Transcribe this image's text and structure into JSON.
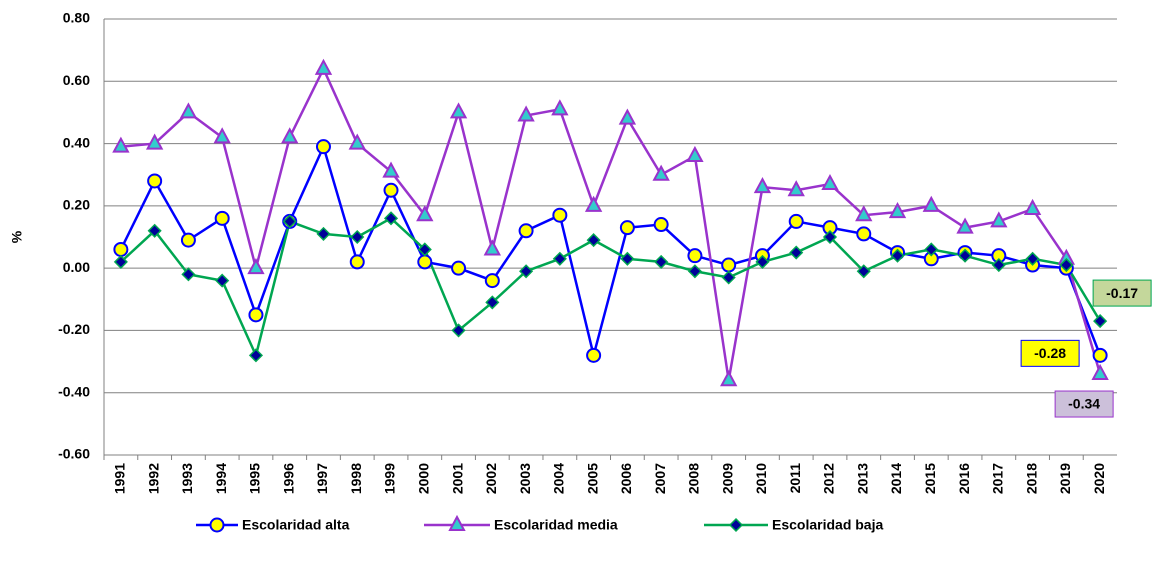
{
  "chart_data": {
    "type": "line",
    "y_label": "%",
    "categories": [
      "1991",
      "1992",
      "1993",
      "1994",
      "1995",
      "1996",
      "1997",
      "1998",
      "1999",
      "2000",
      "2001",
      "2002",
      "2003",
      "2004",
      "2005",
      "2006",
      "2007",
      "2008",
      "2009",
      "2010",
      "2011",
      "2012",
      "2013",
      "2014",
      "2015",
      "2016",
      "2017",
      "2018",
      "2019",
      "2020"
    ],
    "series": [
      {
        "name": "Escolaridad alta",
        "color": "#0000ff",
        "marker": "circle",
        "marker_fill": "#ffff00",
        "label_fill": "#ffff00",
        "values": [
          0.06,
          0.28,
          0.09,
          0.16,
          -0.15,
          0.15,
          0.39,
          0.02,
          0.25,
          0.02,
          0.0,
          -0.04,
          0.12,
          0.17,
          -0.28,
          0.13,
          0.14,
          0.04,
          0.01,
          0.04,
          0.15,
          0.13,
          0.11,
          0.05,
          0.03,
          0.05,
          0.04,
          0.01,
          0.0,
          -0.28
        ]
      },
      {
        "name": "Escolaridad media",
        "color": "#9933cc",
        "marker": "triangle",
        "marker_fill": "#33cccc",
        "label_fill": "#ccc0da",
        "values": [
          0.39,
          0.4,
          0.5,
          0.42,
          0.0,
          0.42,
          0.64,
          0.4,
          0.31,
          0.17,
          0.5,
          0.06,
          0.49,
          0.51,
          0.2,
          0.48,
          0.3,
          0.36,
          -0.36,
          0.26,
          0.25,
          0.27,
          0.17,
          0.18,
          0.2,
          0.13,
          0.15,
          0.19,
          0.03,
          -0.34
        ]
      },
      {
        "name": "Escolaridad baja",
        "color": "#00a651",
        "marker": "diamond",
        "marker_fill": "#000099",
        "label_fill": "#c4d79b",
        "values": [
          0.02,
          0.12,
          -0.02,
          -0.04,
          -0.28,
          0.15,
          0.11,
          0.1,
          0.16,
          0.06,
          -0.2,
          -0.11,
          -0.01,
          0.03,
          0.09,
          0.03,
          0.02,
          -0.01,
          -0.03,
          0.02,
          0.05,
          0.1,
          -0.01,
          0.04,
          0.06,
          0.04,
          0.01,
          0.03,
          0.01,
          -0.17
        ]
      }
    ],
    "ylim": [
      -0.6,
      0.8
    ],
    "yticks": [
      {
        "value": -0.6,
        "label": "-0.60"
      },
      {
        "value": -0.4,
        "label": "-0.40"
      },
      {
        "value": -0.2,
        "label": "-0.20"
      },
      {
        "value": 0,
        "label": "0.00"
      },
      {
        "value": 0.2,
        "label": "0.20"
      },
      {
        "value": 0.4,
        "label": "0.40"
      },
      {
        "value": 0.6,
        "label": "0.60"
      },
      {
        "value": 0.8,
        "label": "0.80"
      }
    ],
    "grid": true,
    "legend": "bottom"
  }
}
